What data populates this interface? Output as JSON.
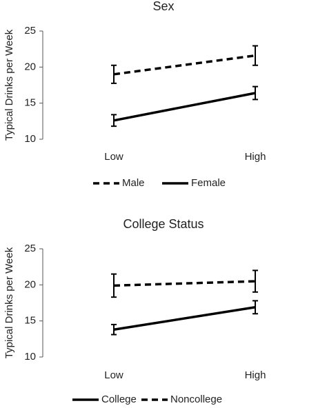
{
  "chart_data": [
    {
      "type": "line",
      "title": "Sex",
      "y_label": "Typical Drinks per Week",
      "categories": [
        "Low",
        "High"
      ],
      "ylim": [
        10,
        25
      ],
      "yticks": [
        10,
        15,
        20,
        25
      ],
      "series": [
        {
          "name": "Male",
          "color": "#000000",
          "dashed": true,
          "values": [
            19.0,
            21.6
          ],
          "errors": [
            1.25,
            1.35
          ]
        },
        {
          "name": "Female",
          "color": "#000000",
          "dashed": false,
          "values": [
            12.6,
            16.4
          ],
          "errors": [
            0.8,
            0.9
          ]
        }
      ]
    },
    {
      "type": "line",
      "title": "College Status",
      "y_label": "Typical Drinks per Week",
      "categories": [
        "Low",
        "High"
      ],
      "ylim": [
        10,
        25
      ],
      "yticks": [
        10,
        15,
        20,
        25
      ],
      "series": [
        {
          "name": "College",
          "color": "#000000",
          "dashed": false,
          "values": [
            13.8,
            16.9
          ],
          "errors": [
            0.7,
            0.9
          ]
        },
        {
          "name": "Noncollege",
          "color": "#000000",
          "dashed": true,
          "values": [
            19.9,
            20.5
          ],
          "errors": [
            1.6,
            1.5
          ]
        }
      ]
    }
  ]
}
